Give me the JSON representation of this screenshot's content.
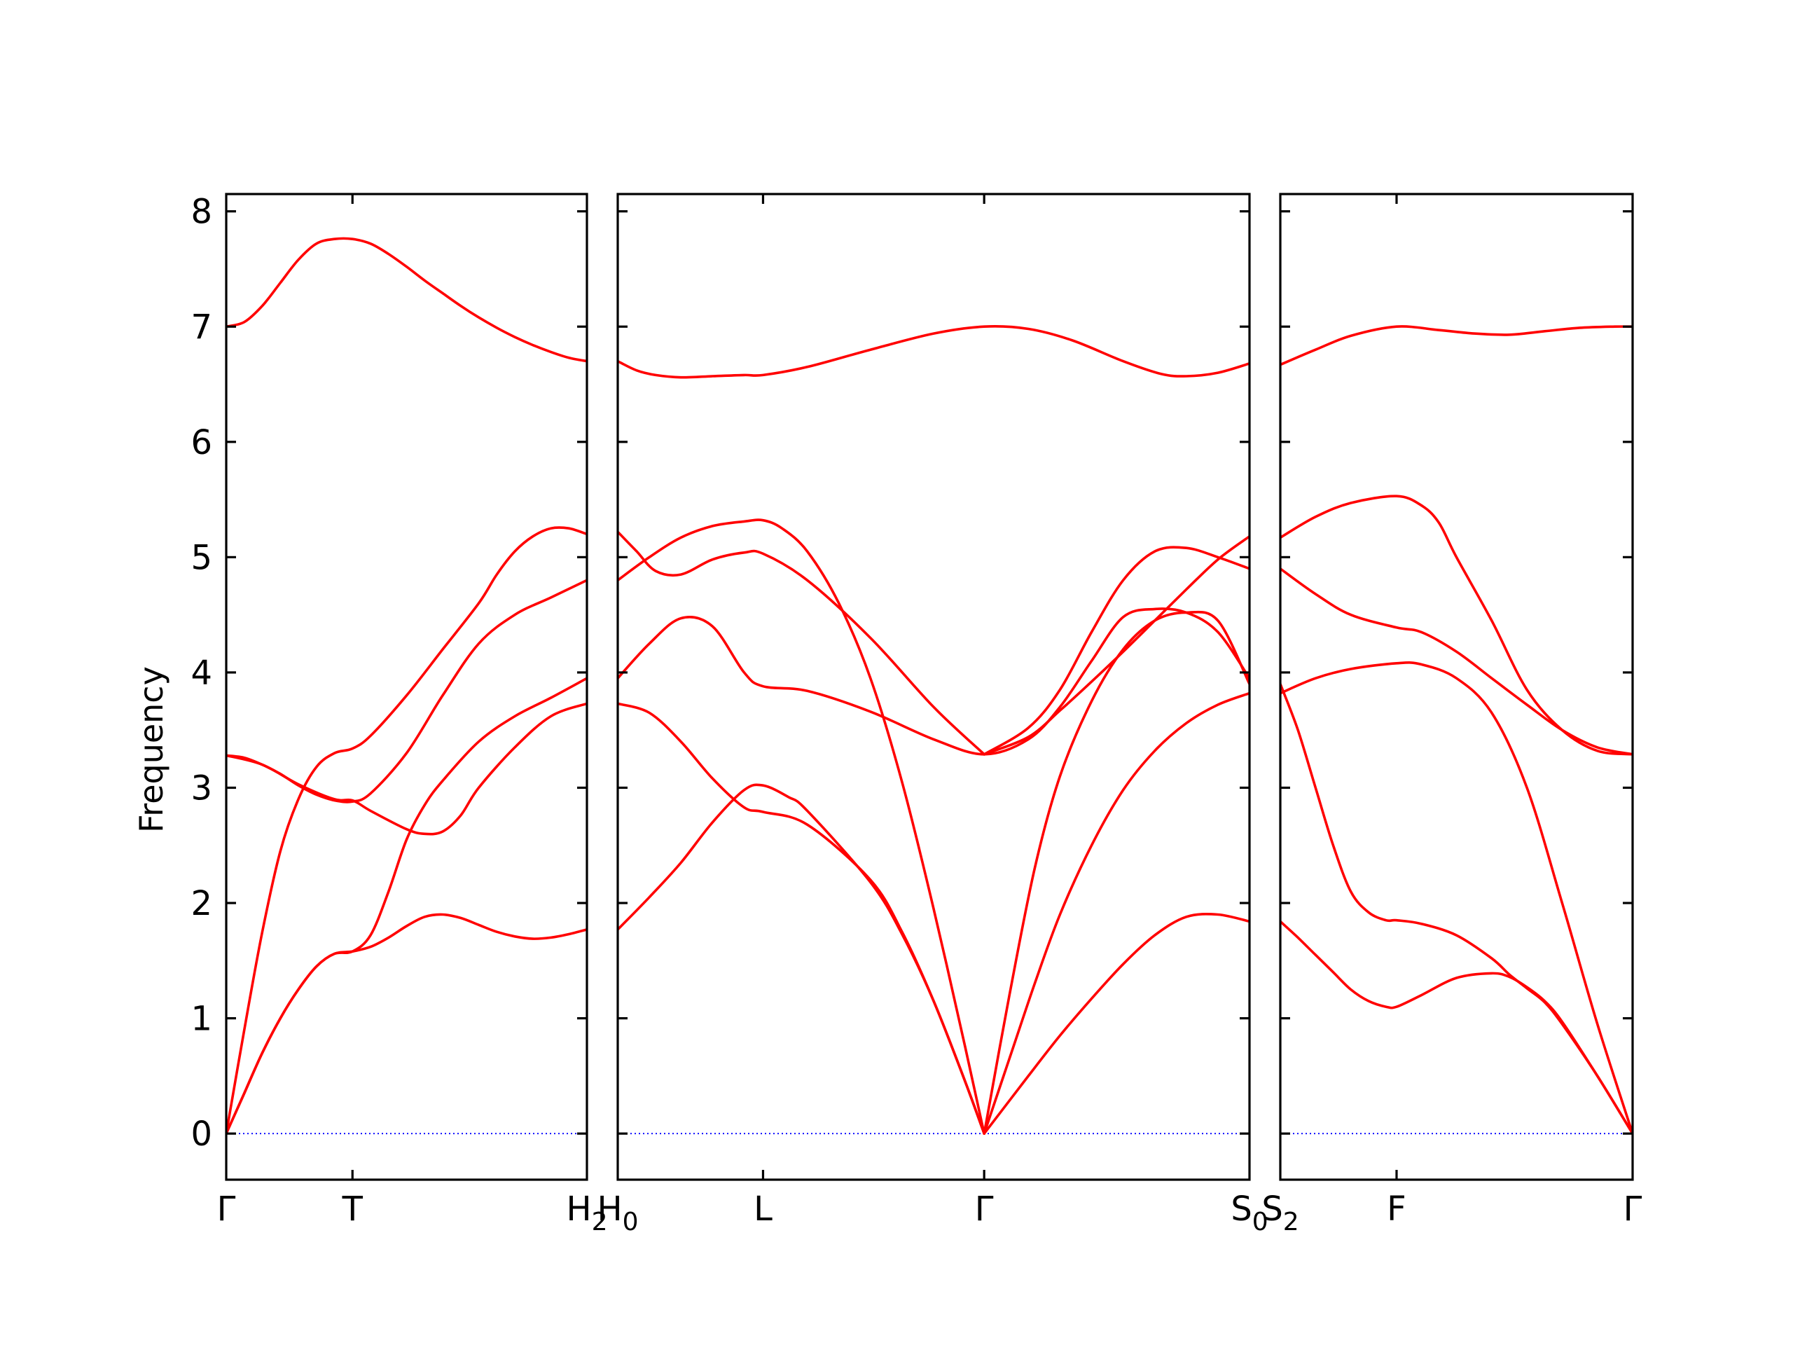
{
  "chart_data": {
    "type": "line",
    "ylabel": "Frequency",
    "ylim": [
      -0.4,
      8.15
    ],
    "yticks": [
      "0",
      "1",
      "2",
      "3",
      "4",
      "5",
      "6",
      "7",
      "8"
    ],
    "grid": false,
    "colors": {
      "bands": "#ff0000",
      "zero_line": "#0000ff",
      "axes": "#000000"
    },
    "segments": [
      {
        "xlim": [
          0,
          1
        ],
        "ticks": [
          {
            "x": 0,
            "label": "Γ"
          },
          {
            "x": 0.35,
            "label": "T"
          },
          {
            "x": 1,
            "label": "H",
            "sub": "2"
          }
        ],
        "series": [
          {
            "x": [
              0,
              0.05,
              0.1,
              0.15,
              0.2,
              0.25,
              0.3,
              0.35,
              0.4,
              0.45,
              0.5,
              0.55,
              0.6,
              0.65,
              0.7,
              0.75,
              0.8,
              0.85,
              0.9,
              0.95,
              1.0
            ],
            "y": [
              7.0,
              7.04,
              7.18,
              7.38,
              7.58,
              7.72,
              7.76,
              7.76,
              7.72,
              7.63,
              7.52,
              7.4,
              7.29,
              7.18,
              7.08,
              6.99,
              6.91,
              6.84,
              6.78,
              6.73,
              6.7
            ]
          },
          {
            "x": [
              0,
              0.05,
              0.1,
              0.15,
              0.2,
              0.25,
              0.3,
              0.35,
              0.4,
              0.5,
              0.6,
              0.7,
              0.75,
              0.8,
              0.85,
              0.9,
              0.95,
              1.0
            ],
            "y": [
              0.0,
              0.9,
              1.75,
              2.45,
              2.9,
              3.18,
              3.3,
              3.34,
              3.45,
              3.8,
              4.2,
              4.6,
              4.85,
              5.05,
              5.18,
              5.25,
              5.25,
              5.2
            ]
          },
          {
            "x": [
              0,
              0.05,
              0.1,
              0.15,
              0.2,
              0.25,
              0.3,
              0.35,
              0.4,
              0.5,
              0.6,
              0.7,
              0.8,
              0.9,
              1.0
            ],
            "y": [
              3.28,
              3.26,
              3.2,
              3.12,
              3.02,
              2.94,
              2.89,
              2.88,
              2.95,
              3.3,
              3.8,
              4.25,
              4.5,
              4.65,
              4.8
            ]
          },
          {
            "x": [
              0,
              0.1,
              0.2,
              0.3,
              0.35,
              0.4,
              0.5,
              0.55,
              0.6,
              0.65,
              0.7,
              0.8,
              0.9,
              1.0
            ],
            "y": [
              3.28,
              3.2,
              3.03,
              2.9,
              2.89,
              2.8,
              2.64,
              2.6,
              2.62,
              2.76,
              3.0,
              3.35,
              3.62,
              3.73
            ]
          },
          {
            "x": [
              0,
              0.05,
              0.1,
              0.15,
              0.2,
              0.25,
              0.3,
              0.35,
              0.4,
              0.45,
              0.5,
              0.55,
              0.6,
              0.7,
              0.8,
              0.9,
              1.0
            ],
            "y": [
              0.0,
              0.35,
              0.7,
              1.0,
              1.25,
              1.45,
              1.56,
              1.58,
              1.72,
              2.1,
              2.55,
              2.85,
              3.06,
              3.4,
              3.62,
              3.78,
              3.95
            ]
          },
          {
            "x": [
              0,
              0.05,
              0.1,
              0.15,
              0.2,
              0.25,
              0.3,
              0.35,
              0.4,
              0.45,
              0.5,
              0.55,
              0.6,
              0.65,
              0.7,
              0.75,
              0.8,
              0.85,
              0.9,
              0.95,
              1.0
            ],
            "y": [
              0.0,
              0.35,
              0.7,
              1.0,
              1.25,
              1.45,
              1.56,
              1.58,
              1.62,
              1.7,
              1.8,
              1.88,
              1.9,
              1.87,
              1.81,
              1.75,
              1.71,
              1.69,
              1.7,
              1.73,
              1.77
            ]
          }
        ]
      },
      {
        "xlim": [
          0,
          1
        ],
        "ticks": [
          {
            "x": 0,
            "label": "H",
            "sub": "0"
          },
          {
            "x": 0.23,
            "label": "L"
          },
          {
            "x": 0.58,
            "label": "Γ"
          },
          {
            "x": 1,
            "label": "S",
            "sub": "0"
          }
        ],
        "series": [
          {
            "x": [
              0,
              0.03,
              0.06,
              0.1,
              0.15,
              0.2,
              0.23,
              0.3,
              0.4,
              0.5,
              0.58,
              0.65,
              0.72,
              0.8,
              0.86,
              0.9,
              0.95,
              1.0
            ],
            "y": [
              6.7,
              6.62,
              6.58,
              6.56,
              6.57,
              6.58,
              6.58,
              6.65,
              6.8,
              6.94,
              7.0,
              6.98,
              6.88,
              6.7,
              6.59,
              6.57,
              6.6,
              6.68
            ]
          },
          {
            "x": [
              0,
              0.05,
              0.1,
              0.15,
              0.2,
              0.23,
              0.26,
              0.3,
              0.35,
              0.4,
              0.45,
              0.5,
              0.55,
              0.58
            ],
            "y": [
              4.8,
              5.0,
              5.17,
              5.27,
              5.31,
              5.32,
              5.25,
              5.05,
              4.6,
              3.95,
              3.05,
              1.95,
              0.75,
              0.0
            ]
          },
          {
            "x": [
              0,
              0.03,
              0.06,
              0.1,
              0.15,
              0.2,
              0.23,
              0.3,
              0.4,
              0.5,
              0.58
            ],
            "y": [
              5.22,
              5.05,
              4.88,
              4.85,
              4.98,
              5.04,
              5.03,
              4.8,
              4.3,
              3.7,
              3.29
            ]
          },
          {
            "x": [
              0,
              0.05,
              0.1,
              0.15,
              0.2,
              0.23,
              0.3,
              0.4,
              0.5,
              0.58,
              0.65,
              0.7,
              0.75,
              0.8,
              0.85,
              0.9,
              0.95,
              1.0
            ],
            "y": [
              3.95,
              4.25,
              4.47,
              4.4,
              4.0,
              3.88,
              3.84,
              3.66,
              3.42,
              3.29,
              3.42,
              3.7,
              4.1,
              4.48,
              4.55,
              4.52,
              4.35,
              3.95
            ]
          },
          {
            "x": [
              0.58,
              0.65,
              0.7,
              0.75,
              0.8,
              0.85,
              0.9,
              0.95,
              1.0
            ],
            "y": [
              3.29,
              3.52,
              3.85,
              4.35,
              4.8,
              5.05,
              5.08,
              5.0,
              4.9
            ]
          },
          {
            "x": [
              0.58,
              0.65,
              0.7,
              0.75,
              0.8,
              0.85,
              0.9,
              0.95,
              1.0
            ],
            "y": [
              3.29,
              3.44,
              3.67,
              3.92,
              4.18,
              4.45,
              4.72,
              4.98,
              5.18
            ]
          },
          {
            "x": [
              0,
              0.05,
              0.1,
              0.15,
              0.2,
              0.23,
              0.3,
              0.4,
              0.45,
              0.5,
              0.55,
              0.58
            ],
            "y": [
              3.73,
              3.65,
              3.4,
              3.08,
              2.83,
              2.79,
              2.68,
              2.2,
              1.75,
              1.15,
              0.45,
              0.0
            ]
          },
          {
            "x": [
              0,
              0.05,
              0.1,
              0.15,
              0.2,
              0.23,
              0.27,
              0.3,
              0.4,
              0.45,
              0.5,
              0.55,
              0.58
            ],
            "y": [
              1.77,
              2.05,
              2.35,
              2.7,
              2.98,
              3.02,
              2.92,
              2.8,
              2.18,
              1.73,
              1.15,
              0.45,
              0.0
            ]
          },
          {
            "x": [
              0.58,
              0.62,
              0.66,
              0.7,
              0.75,
              0.8,
              0.85,
              0.9,
              0.95,
              1.0
            ],
            "y": [
              0.0,
              1.2,
              2.3,
              3.1,
              3.75,
              4.2,
              4.45,
              4.52,
              4.45,
              3.9
            ]
          },
          {
            "x": [
              0.58,
              0.62,
              0.66,
              0.7,
              0.75,
              0.8,
              0.85,
              0.9,
              0.95,
              1.0
            ],
            "y": [
              0.0,
              0.65,
              1.3,
              1.9,
              2.5,
              2.98,
              3.32,
              3.56,
              3.72,
              3.82
            ]
          },
          {
            "x": [
              0.58,
              0.65,
              0.7,
              0.75,
              0.8,
              0.85,
              0.9,
              0.95,
              1.0
            ],
            "y": [
              0.0,
              0.5,
              0.85,
              1.17,
              1.47,
              1.72,
              1.88,
              1.9,
              1.84
            ]
          }
        ]
      },
      {
        "xlim": [
          0,
          1
        ],
        "ticks": [
          {
            "x": 0,
            "label": "S",
            "sub": "2"
          },
          {
            "x": 0.33,
            "label": "F"
          },
          {
            "x": 1,
            "label": "Γ"
          }
        ],
        "series": [
          {
            "x": [
              0,
              0.1,
              0.2,
              0.33,
              0.45,
              0.55,
              0.65,
              0.75,
              0.85,
              0.95,
              1.0
            ],
            "y": [
              6.67,
              6.8,
              6.92,
              7.0,
              6.97,
              6.94,
              6.93,
              6.96,
              6.99,
              7.0,
              7.0
            ]
          },
          {
            "x": [
              0,
              0.1,
              0.2,
              0.33,
              0.4,
              0.45,
              0.5,
              0.6,
              0.7,
              0.8,
              0.9,
              1.0
            ],
            "y": [
              5.17,
              5.35,
              5.47,
              5.53,
              5.45,
              5.3,
              5.0,
              4.45,
              3.85,
              3.5,
              3.32,
              3.29
            ]
          },
          {
            "x": [
              0,
              0.1,
              0.2,
              0.33,
              0.4,
              0.5,
              0.6,
              0.7,
              0.8,
              0.9,
              1.0
            ],
            "y": [
              4.9,
              4.68,
              4.5,
              4.39,
              4.35,
              4.18,
              3.95,
              3.72,
              3.5,
              3.35,
              3.29
            ]
          },
          {
            "x": [
              0,
              0.1,
              0.2,
              0.33,
              0.4,
              0.5,
              0.6,
              0.7,
              0.8,
              0.9,
              1.0
            ],
            "y": [
              3.82,
              3.95,
              4.03,
              4.08,
              4.07,
              3.95,
              3.65,
              3.0,
              2.0,
              0.95,
              0.0
            ]
          },
          {
            "x": [
              0,
              0.05,
              0.1,
              0.15,
              0.2,
              0.25,
              0.3,
              0.33,
              0.4,
              0.5,
              0.6,
              0.65,
              0.7,
              0.75,
              0.8,
              0.9,
              1.0
            ],
            "y": [
              3.9,
              3.5,
              3.0,
              2.5,
              2.1,
              1.92,
              1.85,
              1.85,
              1.82,
              1.72,
              1.52,
              1.38,
              1.26,
              1.14,
              0.95,
              0.5,
              0.0
            ]
          },
          {
            "x": [
              0,
              0.05,
              0.1,
              0.15,
              0.2,
              0.25,
              0.3,
              0.33,
              0.4,
              0.5,
              0.6,
              0.65,
              0.7,
              0.75,
              0.8,
              0.9,
              1.0
            ],
            "y": [
              1.84,
              1.7,
              1.55,
              1.4,
              1.25,
              1.15,
              1.1,
              1.1,
              1.2,
              1.35,
              1.39,
              1.36,
              1.27,
              1.15,
              0.97,
              0.5,
              0.0
            ]
          }
        ]
      }
    ]
  }
}
